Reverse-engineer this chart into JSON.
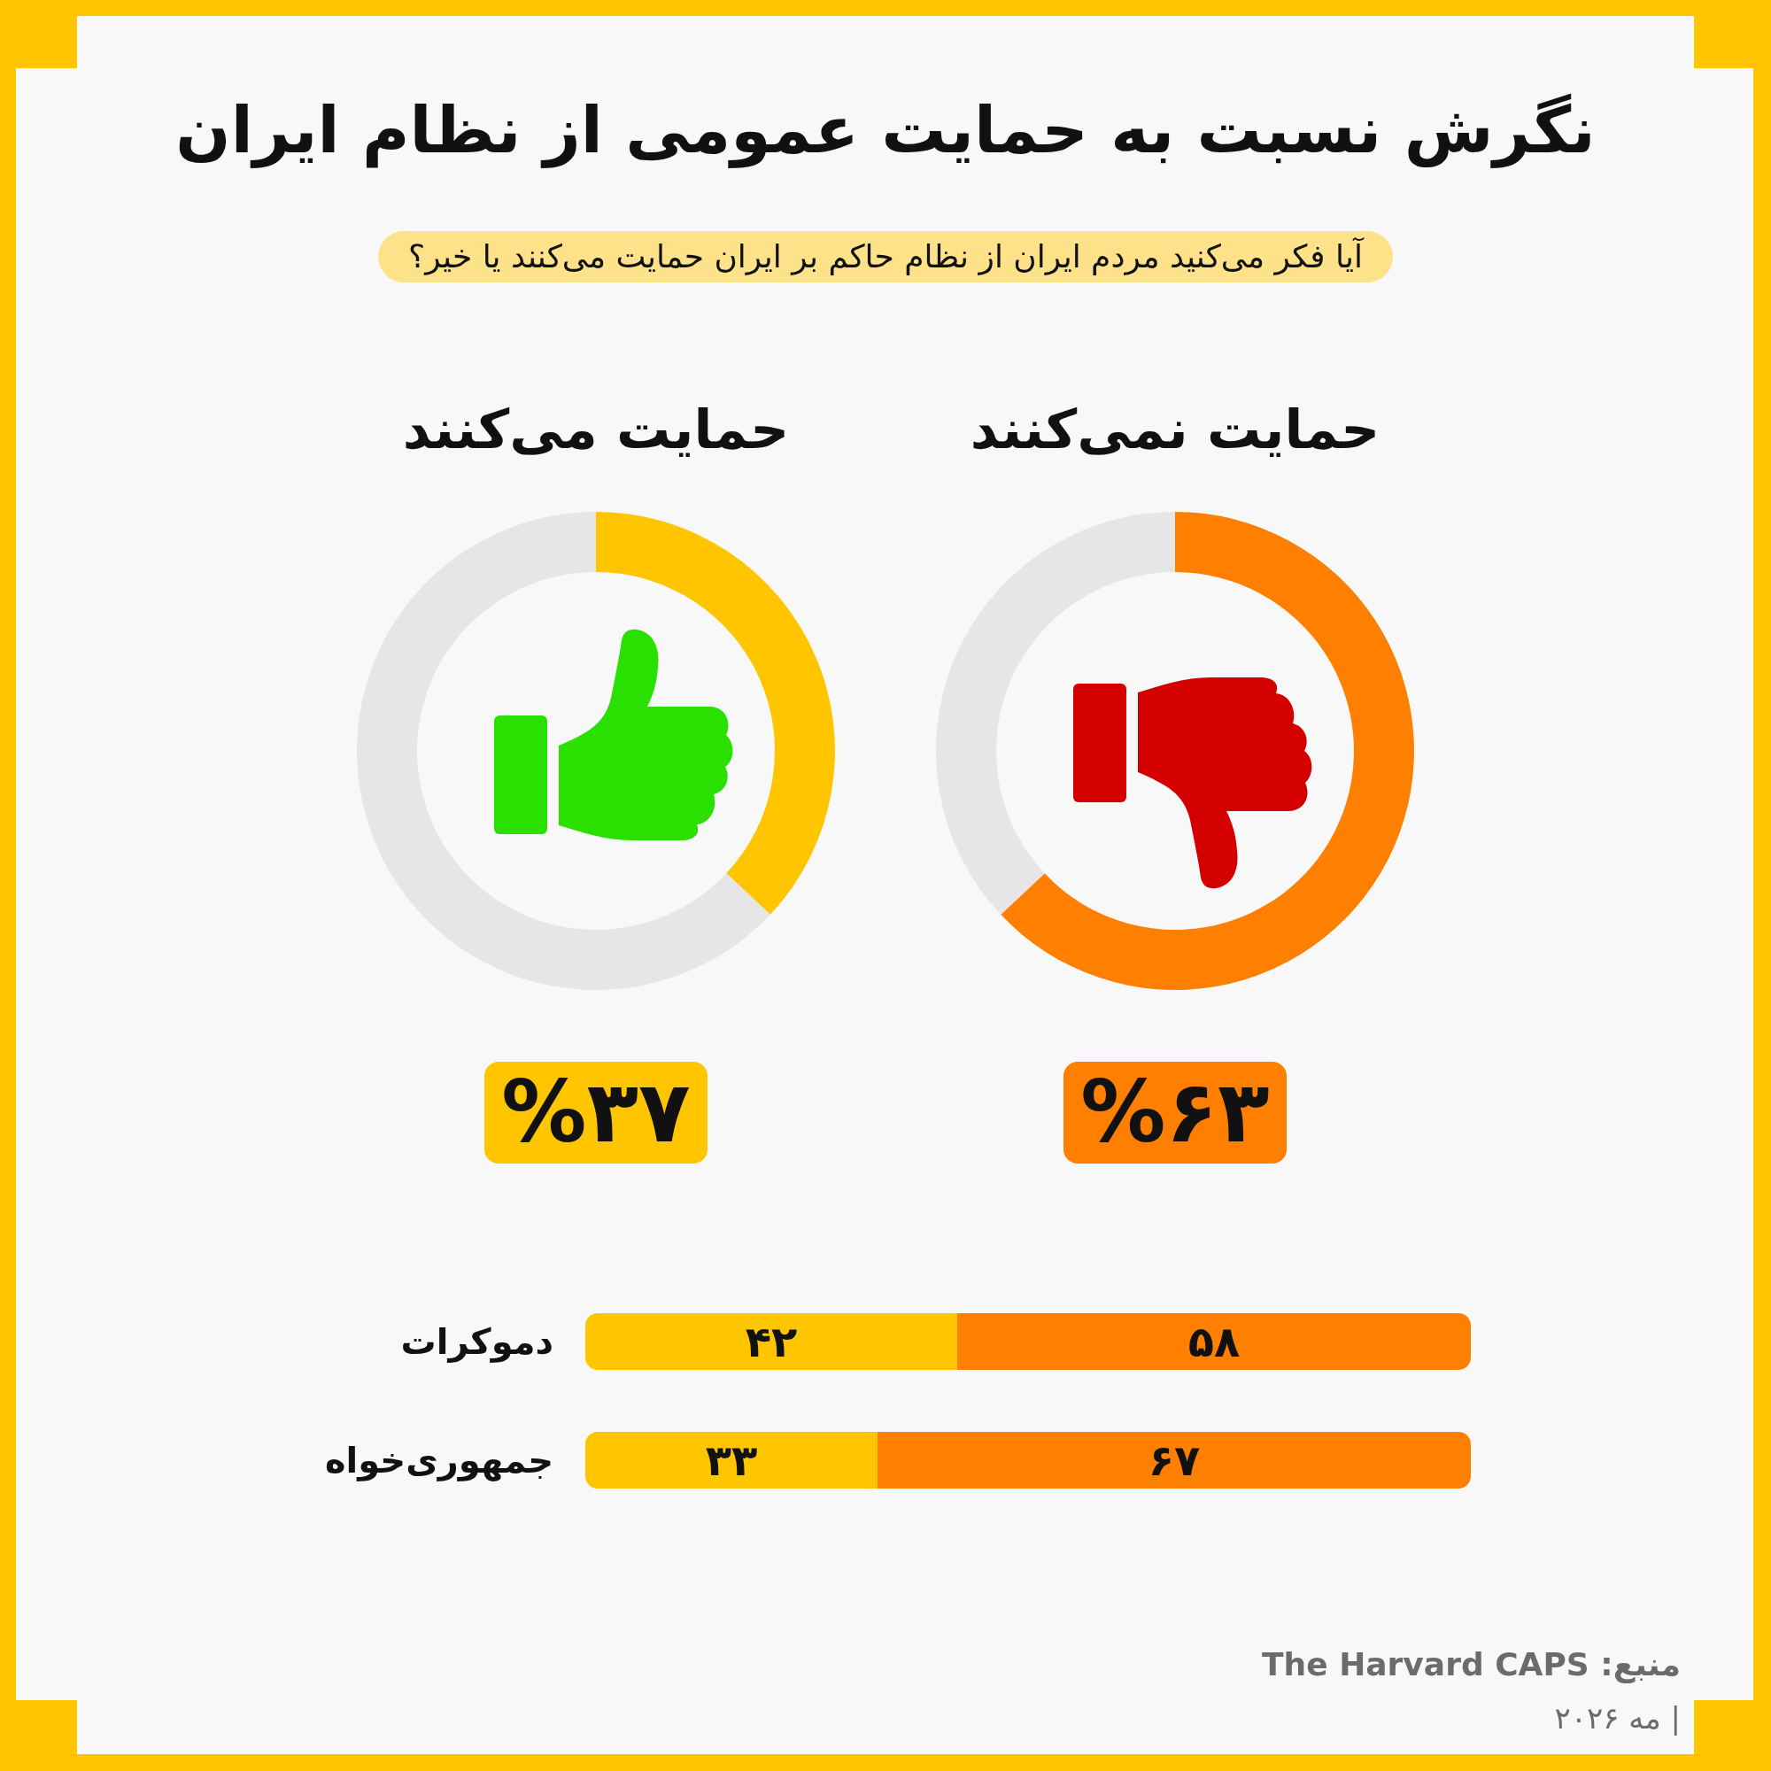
{
  "chart_data": [
    {
      "type": "other",
      "title": "نگرش نسبت به حمایت عمومی از نظام ایران",
      "subtitle": "آیا فکر می‌کنید مردم ایران از نظام حاکم بر ایران حمایت می‌کنند یا خیر؟"
    },
    {
      "type": "donut",
      "title": "حمایت نمی‌کنند",
      "categories": [
        null,
        null
      ],
      "values": [
        63,
        37
      ],
      "colors": [
        "#ff8000",
        "#e6e6e6"
      ],
      "annotations": [
        "%۶۳"
      ]
    },
    {
      "type": "donut",
      "title": "حمایت می‌کنند",
      "categories": [
        null,
        null
      ],
      "values": [
        37,
        63
      ],
      "colors": [
        "#ffc600",
        "#e6e6e6"
      ],
      "annotations": [
        "%۳۷"
      ]
    },
    {
      "type": "bar",
      "orientation": "horizontal",
      "stacked": true,
      "categories": [
        "دموکرات",
        "جمهوری‌خواه"
      ],
      "series": [
        {
          "color": "#ffc600",
          "values": [
            42,
            33
          ],
          "value_labels": [
            "۴۲",
            "۳۳"
          ]
        },
        {
          "color": "#ff8000",
          "values": [
            58,
            67
          ],
          "value_labels": [
            "۵۸",
            "۶۷"
          ]
        }
      ],
      "xlim": [
        0,
        100
      ],
      "tick_labels": "y",
      "annotations": [
        "منبع: The Harvard CAPS",
        "| مه ۲۰۲۶"
      ]
    }
  ]
}
